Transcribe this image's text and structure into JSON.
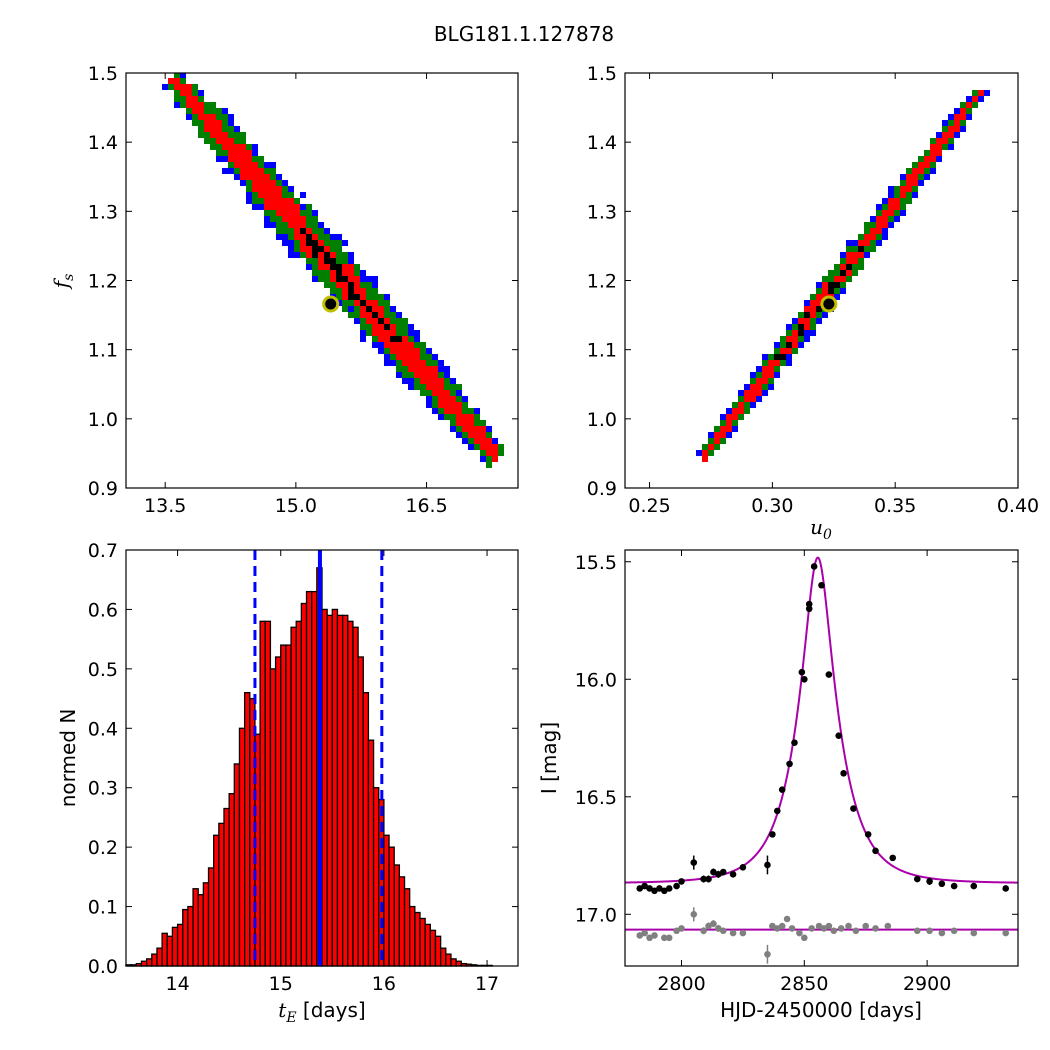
{
  "title": "BLG181.1.127878",
  "chart_data": [
    {
      "type": "heatmap",
      "xlabel": "",
      "ylabel": "f_s",
      "ylabel_main": "f",
      "ylabel_sub": "s",
      "xlim": [
        13.05,
        17.55
      ],
      "ylim": [
        0.9,
        1.5
      ],
      "xticks": [
        13.5,
        15.0,
        16.5
      ],
      "xticklabels": [
        "13.5",
        "15.0",
        "16.5"
      ],
      "yticks": [
        0.9,
        1.0,
        1.1,
        1.2,
        1.3,
        1.4,
        1.5
      ],
      "yticklabels": [
        "0.9",
        "1.0",
        "1.1",
        "1.2",
        "1.3",
        "1.4",
        "1.5"
      ],
      "band": {
        "x_start": 13.6,
        "y_start": 1.49,
        "x_end": 17.3,
        "y_end": 0.945
      },
      "best_fit": {
        "x": 15.4,
        "y": 1.166
      },
      "colors": {
        "outer": "#0000ff",
        "middle": "#007f00",
        "inner": "#ff0000",
        "core": "#000000",
        "marker": "#bfbf00"
      }
    },
    {
      "type": "heatmap",
      "xlabel": "u_0",
      "xlabel_main": "u",
      "xlabel_sub": "0",
      "ylabel": "",
      "xlim": [
        0.24,
        0.4
      ],
      "ylim": [
        0.9,
        1.5
      ],
      "xticks": [
        0.25,
        0.3,
        0.35,
        0.4
      ],
      "xticklabels": [
        "0.25",
        "0.30",
        "0.35",
        "0.40"
      ],
      "yticks": [
        0.9,
        1.0,
        1.1,
        1.2,
        1.3,
        1.4,
        1.5
      ],
      "yticklabels": [
        "0.9",
        "1.0",
        "1.1",
        "1.2",
        "1.3",
        "1.4",
        "1.5"
      ],
      "band": {
        "x_start": 0.272,
        "y_start": 0.945,
        "x_end": 0.385,
        "y_end": 1.475
      },
      "best_fit": {
        "x": 0.323,
        "y": 1.166
      },
      "colors": {
        "outer": "#0000ff",
        "middle": "#007f00",
        "inner": "#ff0000",
        "core": "#000000",
        "marker": "#bfbf00"
      }
    },
    {
      "type": "bar",
      "xlabel": "t_E [days]",
      "xlabel_main": "t",
      "xlabel_sub": "E",
      "xlabel_unit": " [days]",
      "ylabel": "normed N",
      "xlim": [
        13.5,
        17.3
      ],
      "ylim": [
        0.0,
        0.7
      ],
      "xticks": [
        14,
        15,
        16,
        17
      ],
      "xticklabels": [
        "14",
        "15",
        "16",
        "17"
      ],
      "yticks": [
        0.0,
        0.1,
        0.2,
        0.3,
        0.4,
        0.5,
        0.6,
        0.7
      ],
      "yticklabels": [
        "0.0",
        "0.1",
        "0.2",
        "0.3",
        "0.4",
        "0.5",
        "0.6",
        "0.7"
      ],
      "bin_start": 13.5,
      "bin_width": 0.05,
      "values": [
        0.002,
        0.002,
        0.004,
        0.008,
        0.012,
        0.02,
        0.03,
        0.055,
        0.05,
        0.065,
        0.07,
        0.095,
        0.1,
        0.13,
        0.12,
        0.14,
        0.165,
        0.22,
        0.24,
        0.265,
        0.29,
        0.34,
        0.4,
        0.46,
        0.45,
        0.39,
        0.58,
        0.58,
        0.5,
        0.52,
        0.54,
        0.54,
        0.57,
        0.58,
        0.61,
        0.63,
        0.63,
        0.67,
        0.6,
        0.59,
        0.6,
        0.59,
        0.59,
        0.58,
        0.57,
        0.52,
        0.46,
        0.38,
        0.3,
        0.28,
        0.22,
        0.2,
        0.17,
        0.15,
        0.13,
        0.1,
        0.09,
        0.08,
        0.07,
        0.06,
        0.05,
        0.03,
        0.02,
        0.012,
        0.008,
        0.004,
        0.003,
        0.002,
        0.001,
        0.001,
        0.001,
        0.0,
        0.0,
        0.0,
        0.0,
        0.0
      ],
      "median": 15.38,
      "lower": 14.75,
      "upper": 15.98,
      "colors": {
        "bar": "#ff0000",
        "edge": "#000000",
        "median": "#0000ff",
        "bounds": "#0000ff"
      }
    },
    {
      "type": "line",
      "xlabel": "HJD-2450000 [days]",
      "ylabel": "I [mag]",
      "xlim": [
        2777,
        2937
      ],
      "ylim": [
        17.22,
        15.45
      ],
      "y_inverted": true,
      "xticks": [
        2800,
        2850,
        2900
      ],
      "xticklabels": [
        "2800",
        "2850",
        "2900"
      ],
      "yticks": [
        15.5,
        16.0,
        16.5,
        17.0
      ],
      "yticklabels": [
        "15.5",
        "16.0",
        "16.5",
        "17.0"
      ],
      "model": {
        "t0": 2855.5,
        "tE": 15.4,
        "u0": 0.323,
        "baseline": 16.868
      },
      "residual_baseline": 17.065,
      "observed": [
        [
          2783,
          16.89,
          0.012
        ],
        [
          2785,
          16.88,
          0.012
        ],
        [
          2787,
          16.89,
          0.012
        ],
        [
          2789,
          16.9,
          0.012
        ],
        [
          2791,
          16.89,
          0.012
        ],
        [
          2793,
          16.9,
          0.012
        ],
        [
          2795,
          16.89,
          0.012
        ],
        [
          2798,
          16.88,
          0.012
        ],
        [
          2800,
          16.86,
          0.012
        ],
        [
          2805,
          16.78,
          0.03
        ],
        [
          2809,
          16.85,
          0.015
        ],
        [
          2811,
          16.85,
          0.015
        ],
        [
          2813,
          16.82,
          0.015
        ],
        [
          2815,
          16.83,
          0.015
        ],
        [
          2817,
          16.82,
          0.012
        ],
        [
          2821,
          16.83,
          0.012
        ],
        [
          2825,
          16.8,
          0.012
        ],
        [
          2835,
          16.79,
          0.04
        ],
        [
          2837,
          16.66,
          0.012
        ],
        [
          2839,
          16.56,
          0.012
        ],
        [
          2841,
          16.47,
          0.012
        ],
        [
          2844,
          16.36,
          0.012
        ],
        [
          2846,
          16.27,
          0.012
        ],
        [
          2849,
          15.97,
          0.012
        ],
        [
          2850,
          16.0,
          0.012
        ],
        [
          2852,
          15.68,
          0.012
        ],
        [
          2852,
          15.7,
          0.012
        ],
        [
          2854,
          15.52,
          0.012
        ],
        [
          2857,
          15.6,
          0.012
        ],
        [
          2860,
          15.98,
          0.012
        ],
        [
          2864,
          16.24,
          0.012
        ],
        [
          2866,
          16.4,
          0.012
        ],
        [
          2870,
          16.55,
          0.012
        ],
        [
          2876,
          16.66,
          0.012
        ],
        [
          2879,
          16.73,
          0.012
        ],
        [
          2886,
          16.76,
          0.012
        ],
        [
          2896,
          16.85,
          0.012
        ],
        [
          2901,
          16.86,
          0.015
        ],
        [
          2906,
          16.87,
          0.012
        ],
        [
          2911,
          16.88,
          0.012
        ],
        [
          2919,
          16.88,
          0.012
        ],
        [
          2932,
          16.89,
          0.012
        ]
      ],
      "residuals": [
        [
          2783,
          17.09,
          0.012
        ],
        [
          2785,
          17.08,
          0.012
        ],
        [
          2787,
          17.1,
          0.012
        ],
        [
          2789,
          17.09,
          0.012
        ],
        [
          2793,
          17.1,
          0.012
        ],
        [
          2795,
          17.1,
          0.012
        ],
        [
          2798,
          17.07,
          0.012
        ],
        [
          2800,
          17.06,
          0.012
        ],
        [
          2805,
          17.0,
          0.03
        ],
        [
          2809,
          17.07,
          0.015
        ],
        [
          2811,
          17.05,
          0.015
        ],
        [
          2813,
          17.04,
          0.015
        ],
        [
          2815,
          17.06,
          0.015
        ],
        [
          2817,
          17.07,
          0.012
        ],
        [
          2821,
          17.08,
          0.012
        ],
        [
          2825,
          17.08,
          0.012
        ],
        [
          2835,
          17.17,
          0.04
        ],
        [
          2837,
          17.05,
          0.012
        ],
        [
          2839,
          17.06,
          0.012
        ],
        [
          2841,
          17.05,
          0.012
        ],
        [
          2843,
          17.02,
          0.012
        ],
        [
          2845,
          17.06,
          0.012
        ],
        [
          2848,
          17.08,
          0.012
        ],
        [
          2850,
          17.1,
          0.012
        ],
        [
          2853,
          17.06,
          0.012
        ],
        [
          2856,
          17.05,
          0.012
        ],
        [
          2858,
          17.06,
          0.012
        ],
        [
          2860,
          17.05,
          0.012
        ],
        [
          2862,
          17.07,
          0.012
        ],
        [
          2865,
          17.06,
          0.012
        ],
        [
          2868,
          17.05,
          0.012
        ],
        [
          2871,
          17.07,
          0.012
        ],
        [
          2875,
          17.05,
          0.012
        ],
        [
          2879,
          17.06,
          0.012
        ],
        [
          2884,
          17.05,
          0.012
        ],
        [
          2896,
          17.07,
          0.012
        ],
        [
          2901,
          17.07,
          0.012
        ],
        [
          2906,
          17.08,
          0.012
        ],
        [
          2911,
          17.07,
          0.012
        ],
        [
          2919,
          17.08,
          0.012
        ],
        [
          2932,
          17.08,
          0.012
        ]
      ],
      "colors": {
        "model": "#aa00aa",
        "observed": "#000000",
        "residual": "#808080"
      }
    }
  ]
}
